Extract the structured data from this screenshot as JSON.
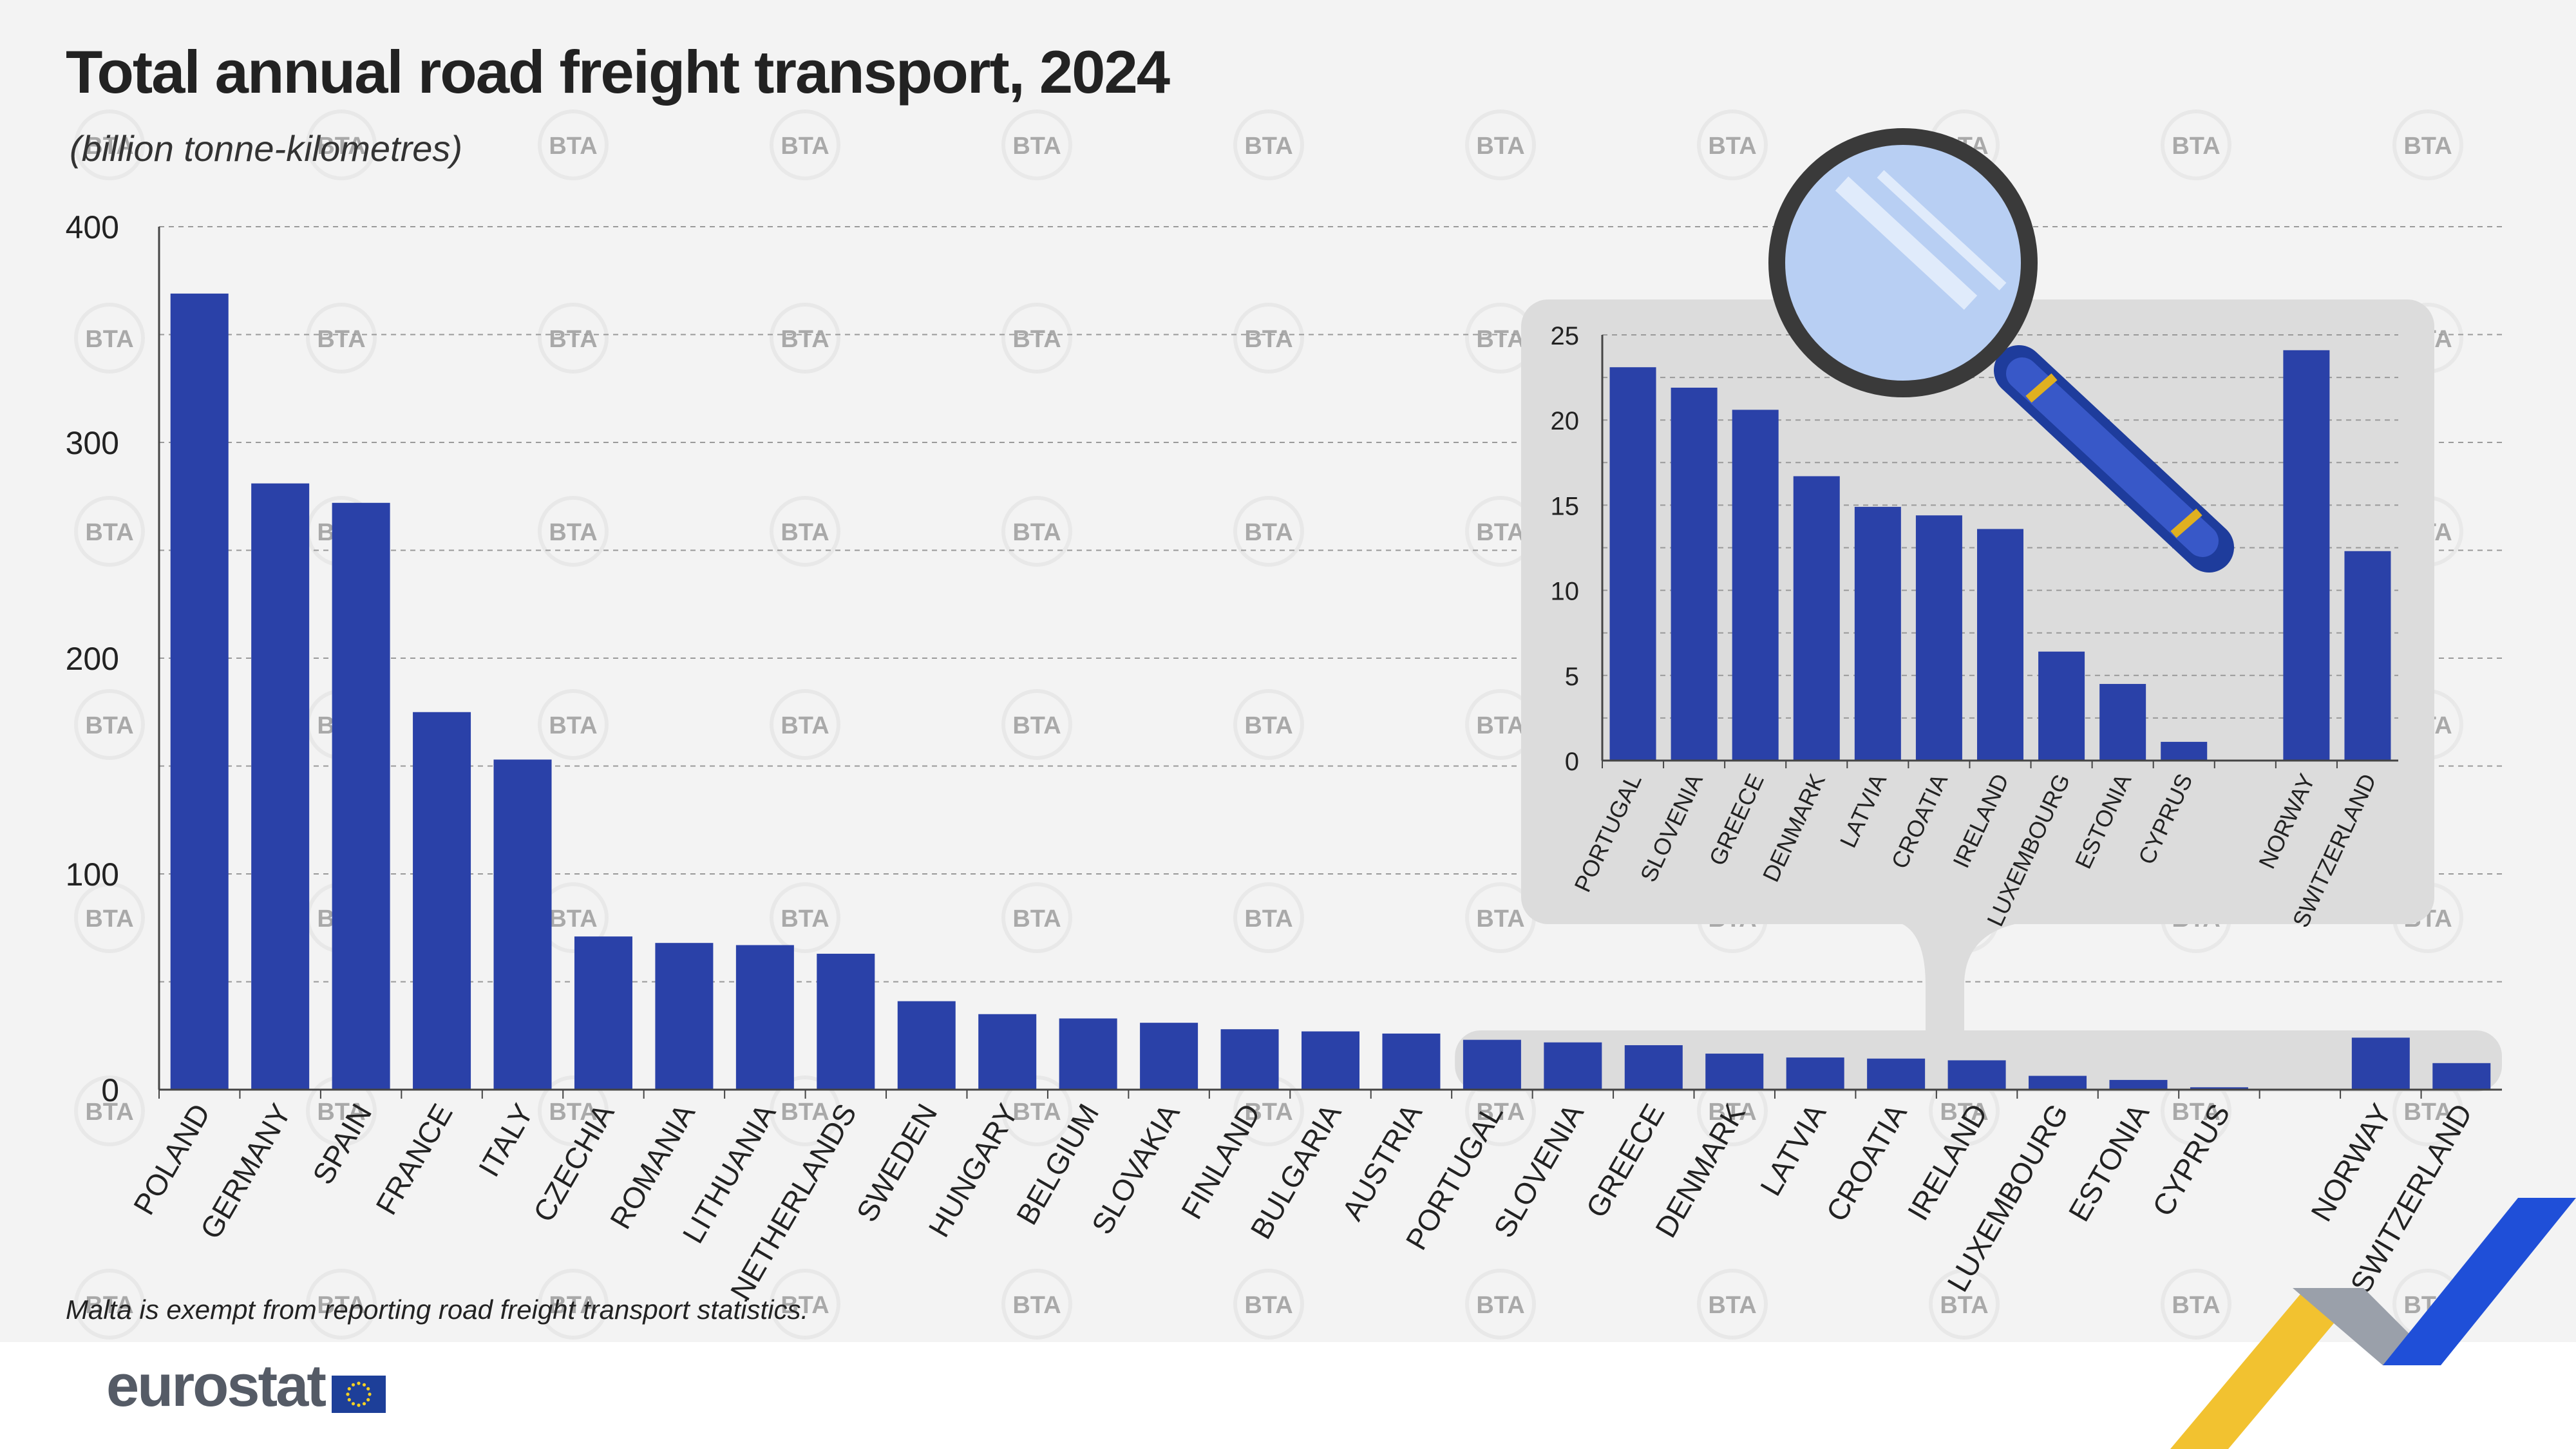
{
  "title": "Total annual road freight transport, 2024",
  "subtitle": "(billion tonne-kilometres)",
  "note": "Malta is exempt from reporting road freight transport statistics.",
  "logo": {
    "text": "eurostat"
  },
  "watermark": "BTA",
  "colors": {
    "bar": "#2a41a8",
    "background": "#f3f3f3",
    "inset_panel": "#dcdcdc",
    "grid": "#9a9a9a",
    "accent_yellow": "#f2c230",
    "accent_blue": "#1f4fd8"
  },
  "chart_data": [
    {
      "type": "bar",
      "categories": [
        "POLAND",
        "GERMANY",
        "SPAIN",
        "FRANCE",
        "ITALY",
        "CZECHIA",
        "ROMANIA",
        "LITHUANIA",
        "NETHERLANDS",
        "SWEDEN",
        "HUNGARY",
        "BELGIUM",
        "SLOVAKIA",
        "FINLAND",
        "BULGARIA",
        "AUSTRIA",
        "PORTUGAL",
        "SLOVENIA",
        "GREECE",
        "DENMARK",
        "LATVIA",
        "CROATIA",
        "IRELAND",
        "LUXEMBOURG",
        "ESTONIA",
        "CYPRUS",
        "",
        "NORWAY",
        "SWITZERLAND"
      ],
      "values": [
        369,
        281,
        272,
        175,
        153,
        71,
        68,
        67,
        63,
        41,
        35,
        33,
        31,
        28,
        27,
        26,
        23.1,
        21.9,
        20.6,
        16.7,
        14.9,
        14.4,
        13.6,
        6.4,
        4.5,
        1.1,
        null,
        24.1,
        12.3
      ],
      "ylim": [
        0,
        400
      ],
      "yticks": [
        0,
        100,
        200,
        300,
        400
      ],
      "grid": true
    },
    {
      "type": "bar",
      "categories": [
        "PORTUGAL",
        "SLOVENIA",
        "GREECE",
        "DENMARK",
        "LATVIA",
        "CROATIA",
        "IRELAND",
        "LUXEMBOURG",
        "ESTONIA",
        "CYPRUS",
        "",
        "NORWAY",
        "SWITZERLAND"
      ],
      "values": [
        23.1,
        21.9,
        20.6,
        16.7,
        14.9,
        14.4,
        13.6,
        6.4,
        4.5,
        1.1,
        null,
        24.1,
        12.3
      ],
      "ylim": [
        0,
        25
      ],
      "yticks": [
        0,
        5,
        10,
        15,
        20,
        25
      ],
      "grid": true
    }
  ]
}
